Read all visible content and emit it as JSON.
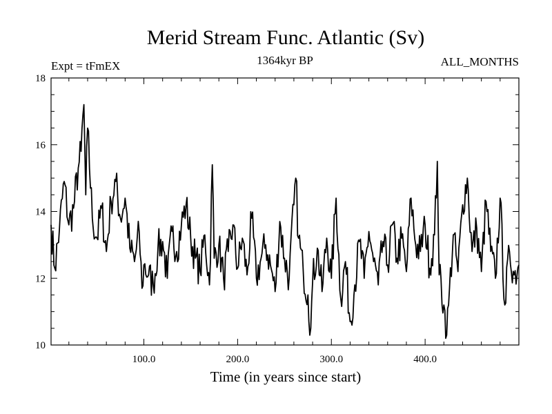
{
  "chart_data": {
    "type": "line",
    "title": "Merid Stream Func. Atlantic (Sv)",
    "subtitle_left": "Expt = tFmEX",
    "subtitle_center": "1364kyr BP",
    "subtitle_right": "ALL_MONTHS",
    "xlabel": "Time (in years since start)",
    "ylabel": "",
    "xlim": [
      1,
      500
    ],
    "ylim": [
      10,
      18
    ],
    "xticks": [
      100,
      200,
      300,
      400
    ],
    "xtick_labels": [
      "100.0",
      "200.0",
      "300.0",
      "400.0"
    ],
    "yticks": [
      10,
      12,
      14,
      16,
      18
    ],
    "ytick_labels": [
      "10",
      "12",
      "14",
      "16",
      "18"
    ],
    "series": [
      {
        "name": "Merid Stream Func. Atlantic",
        "color": "#000000",
        "x": [
          1,
          5,
          10,
          15,
          20,
          25,
          30,
          33,
          36,
          38,
          40,
          45,
          50,
          55,
          60,
          65,
          70,
          75,
          80,
          85,
          90,
          95,
          98,
          100,
          105,
          110,
          115,
          120,
          125,
          130,
          135,
          140,
          145,
          150,
          155,
          160,
          165,
          170,
          173,
          175,
          180,
          185,
          190,
          195,
          200,
          205,
          210,
          215,
          220,
          225,
          230,
          235,
          240,
          245,
          250,
          255,
          260,
          262,
          265,
          270,
          275,
          278,
          280,
          285,
          290,
          295,
          300,
          305,
          310,
          315,
          320,
          325,
          330,
          335,
          340,
          345,
          350,
          355,
          360,
          365,
          370,
          375,
          380,
          385,
          390,
          395,
          400,
          405,
          410,
          413,
          415,
          420,
          423,
          425,
          430,
          435,
          440,
          445,
          450,
          455,
          460,
          465,
          470,
          475,
          480,
          485,
          490,
          495,
          500
        ],
        "values": [
          13.6,
          12.3,
          13.5,
          14.9,
          13.6,
          14.1,
          15.3,
          15.8,
          17.2,
          14.5,
          16.5,
          13.8,
          13.2,
          14.1,
          12.8,
          14.3,
          14.9,
          13.8,
          14.4,
          12.9,
          12.5,
          13.4,
          11.7,
          12.4,
          12.1,
          11.8,
          12.9,
          13.1,
          12.0,
          13.4,
          12.8,
          13.6,
          14.2,
          13.2,
          12.6,
          12.2,
          13.3,
          11.8,
          15.4,
          12.6,
          13.0,
          12.0,
          12.8,
          13.6,
          12.3,
          13.2,
          12.1,
          13.8,
          12.0,
          12.6,
          13.0,
          12.4,
          11.6,
          13.7,
          12.6,
          12.0,
          14.2,
          15.0,
          13.2,
          12.2,
          11.5,
          10.5,
          11.9,
          12.9,
          11.6,
          13.2,
          12.0,
          14.4,
          11.4,
          12.5,
          10.7,
          11.8,
          13.1,
          12.0,
          13.4,
          12.5,
          11.8,
          13.1,
          12.4,
          13.6,
          12.6,
          13.2,
          12.2,
          14.4,
          13.0,
          12.8,
          13.6,
          12.3,
          13.3,
          15.5,
          12.1,
          11.2,
          10.3,
          11.2,
          13.3,
          12.2,
          14.2,
          15.0,
          12.8,
          13.5,
          12.2,
          14.3,
          12.8,
          12.0,
          14.4,
          11.2,
          12.8,
          12.1,
          12.4
        ]
      }
    ]
  }
}
